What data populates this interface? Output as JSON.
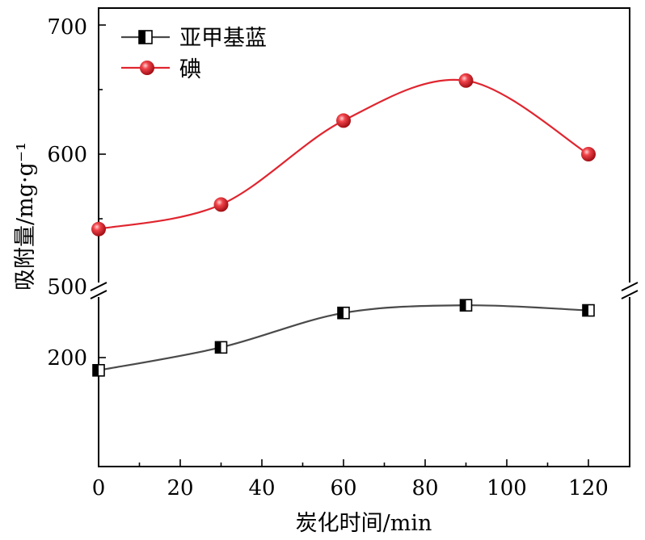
{
  "chart_data": {
    "type": "line",
    "xlabel": "炭化时间/min",
    "ylabel": "吸附量/mg·g⁻¹",
    "xlim": [
      0,
      130
    ],
    "x_ticks": [
      "0",
      "20",
      "40",
      "60",
      "80",
      "100",
      "120"
    ],
    "y_ticks_lower": [
      "200"
    ],
    "y_ticks_upper": [
      "500",
      "600",
      "700"
    ],
    "y_axis_break": true,
    "lower_segment_ylim": [
      120,
      280
    ],
    "upper_segment_ylim": [
      500,
      715
    ],
    "legend_position": "top-left",
    "x": [
      0,
      30,
      60,
      90,
      120
    ],
    "series": [
      {
        "name": "亚甲基蓝",
        "segment": "lower",
        "marker": "half-filled-square",
        "color": "#4a4a4a",
        "values": [
          190,
          208,
          235,
          241,
          237
        ]
      },
      {
        "name": "碘",
        "segment": "upper",
        "marker": "red-sphere",
        "color": "#e0252f",
        "values": [
          542,
          561,
          626,
          657,
          600
        ]
      }
    ]
  }
}
